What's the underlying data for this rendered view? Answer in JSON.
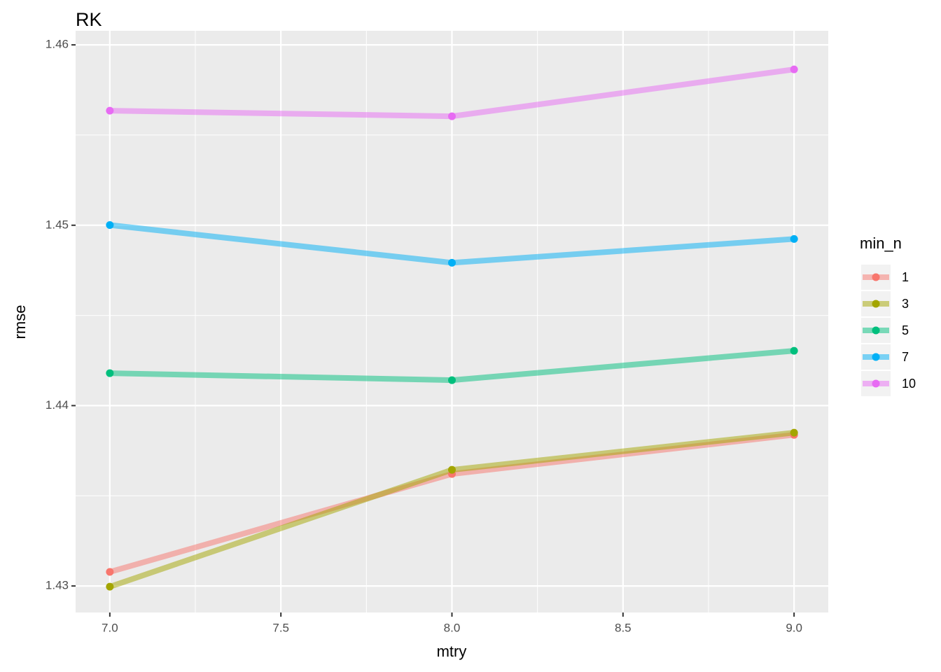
{
  "chart_data": {
    "type": "line",
    "title": "RK",
    "x_label": "mtry",
    "y_label": "rmse",
    "legend_title": "min_n",
    "x": [
      7,
      8,
      9
    ],
    "xlim": [
      6.9,
      9.1
    ],
    "xticks": [
      {
        "value": 7,
        "label": "7.0"
      },
      7.5,
      {
        "value": 8,
        "label": "8.0"
      },
      8.5,
      {
        "value": 9,
        "label": "9.0"
      }
    ],
    "ylim": [
      1.42853,
      1.46078
    ],
    "yticks": [
      1.43,
      1.44,
      1.45,
      1.46
    ],
    "grid": true,
    "legend_position": "right",
    "series": [
      {
        "name": "1",
        "color": "#F8766D",
        "values": [
          1.43078,
          1.43621,
          1.43838
        ]
      },
      {
        "name": "3",
        "color": "#A3A500",
        "values": [
          1.42996,
          1.43644,
          1.4385
        ]
      },
      {
        "name": "5",
        "color": "#00BF7D",
        "values": [
          1.4418,
          1.44141,
          1.44304
        ]
      },
      {
        "name": "7",
        "color": "#00B0F6",
        "values": [
          1.45001,
          1.44792,
          1.44924
        ]
      },
      {
        "name": "10",
        "color": "#E76BF3",
        "values": [
          1.45635,
          1.45604,
          1.45864
        ]
      }
    ]
  }
}
